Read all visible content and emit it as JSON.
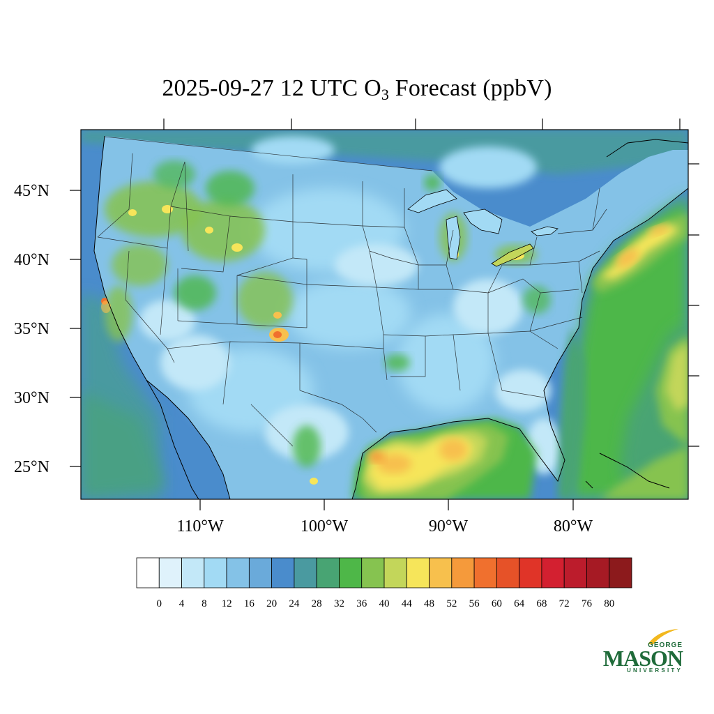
{
  "title": {
    "prefix": "2025-09-27 12 UTC O",
    "subscript": "3",
    "suffix": " Forecast (ppbV)"
  },
  "map": {
    "lat_labels": [
      "45°N",
      "40°N",
      "35°N",
      "30°N",
      "25°N"
    ],
    "lon_labels": [
      "110°W",
      "100°W",
      "90°W",
      "80°W"
    ],
    "field": "surface ozone",
    "units": "ppbV"
  },
  "colorbar": {
    "ticks": [
      "0",
      "4",
      "8",
      "12",
      "16",
      "20",
      "24",
      "28",
      "32",
      "36",
      "40",
      "44",
      "48",
      "52",
      "56",
      "60",
      "64",
      "68",
      "72",
      "76",
      "80"
    ],
    "colors": [
      "#ffffff",
      "#dff2fb",
      "#c3e8f8",
      "#a2daf4",
      "#84c2e7",
      "#6aaada",
      "#4a8ccc",
      "#4a9aa0",
      "#48a473",
      "#4eb748",
      "#86c350",
      "#c3d65a",
      "#f6e55a",
      "#f7c04d",
      "#f59a3b",
      "#f0702e",
      "#e65228",
      "#e03428",
      "#d32030",
      "#bc1c2c",
      "#a61a24",
      "#8c1a1c"
    ]
  },
  "logo": {
    "line1": "GEORGE",
    "line2": "MASON",
    "line3": "UNIVERSITY"
  }
}
